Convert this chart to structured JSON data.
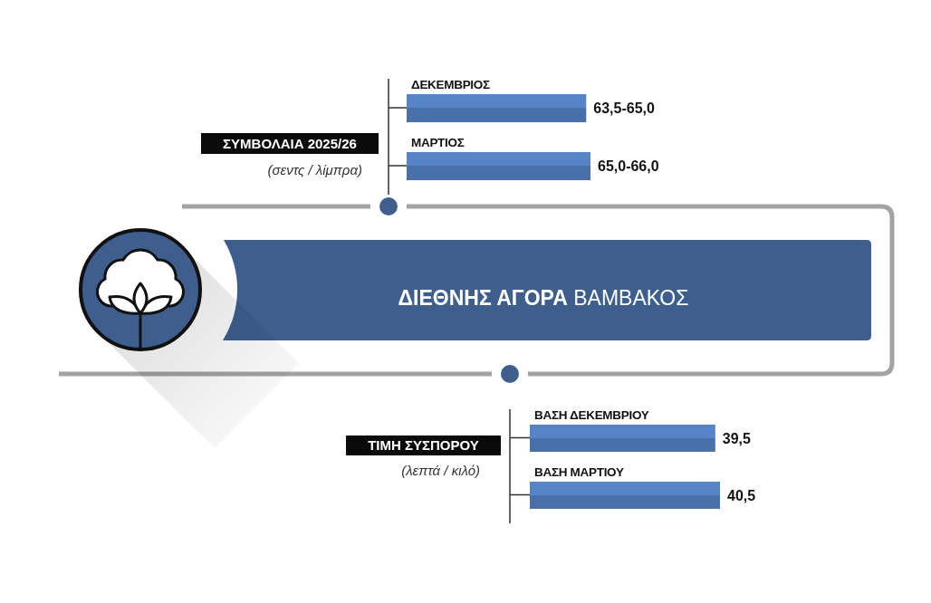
{
  "chart_data": [
    {
      "type": "bar",
      "orientation": "horizontal",
      "title": "ΣΥΜΒΟΛΑΙΑ 2025/26",
      "subtitle": "(σεντς / λίμπρα)",
      "categories": [
        "ΔΕΚΕΜΒΡΙΟΣ",
        "ΜΑΡΤΙΟΣ"
      ],
      "values": [
        63.5,
        65.0
      ],
      "value_labels": [
        "63,5-65,0",
        "65,0-66,0"
      ],
      "color": "#4a70aa"
    },
    {
      "type": "other",
      "title": "ΔΙΕΘΝΗΣ ΑΓΟΡΑ ΒΑΜΒΑΚΟΣ"
    },
    {
      "type": "bar",
      "orientation": "horizontal",
      "title": "ΤΙΜΗ ΣΥΣΠΟΡΟΥ",
      "subtitle": "(λεπτά / κιλό)",
      "categories": [
        "ΒΑΣΗ ΔΕΚΕΜΒΡΙΟΥ",
        "ΒΑΣΗ ΜΑΡΤΙΟΥ"
      ],
      "values": [
        39.5,
        40.5
      ],
      "value_labels": [
        "39,5",
        "40,5"
      ],
      "color": "#4a70aa"
    }
  ]
}
